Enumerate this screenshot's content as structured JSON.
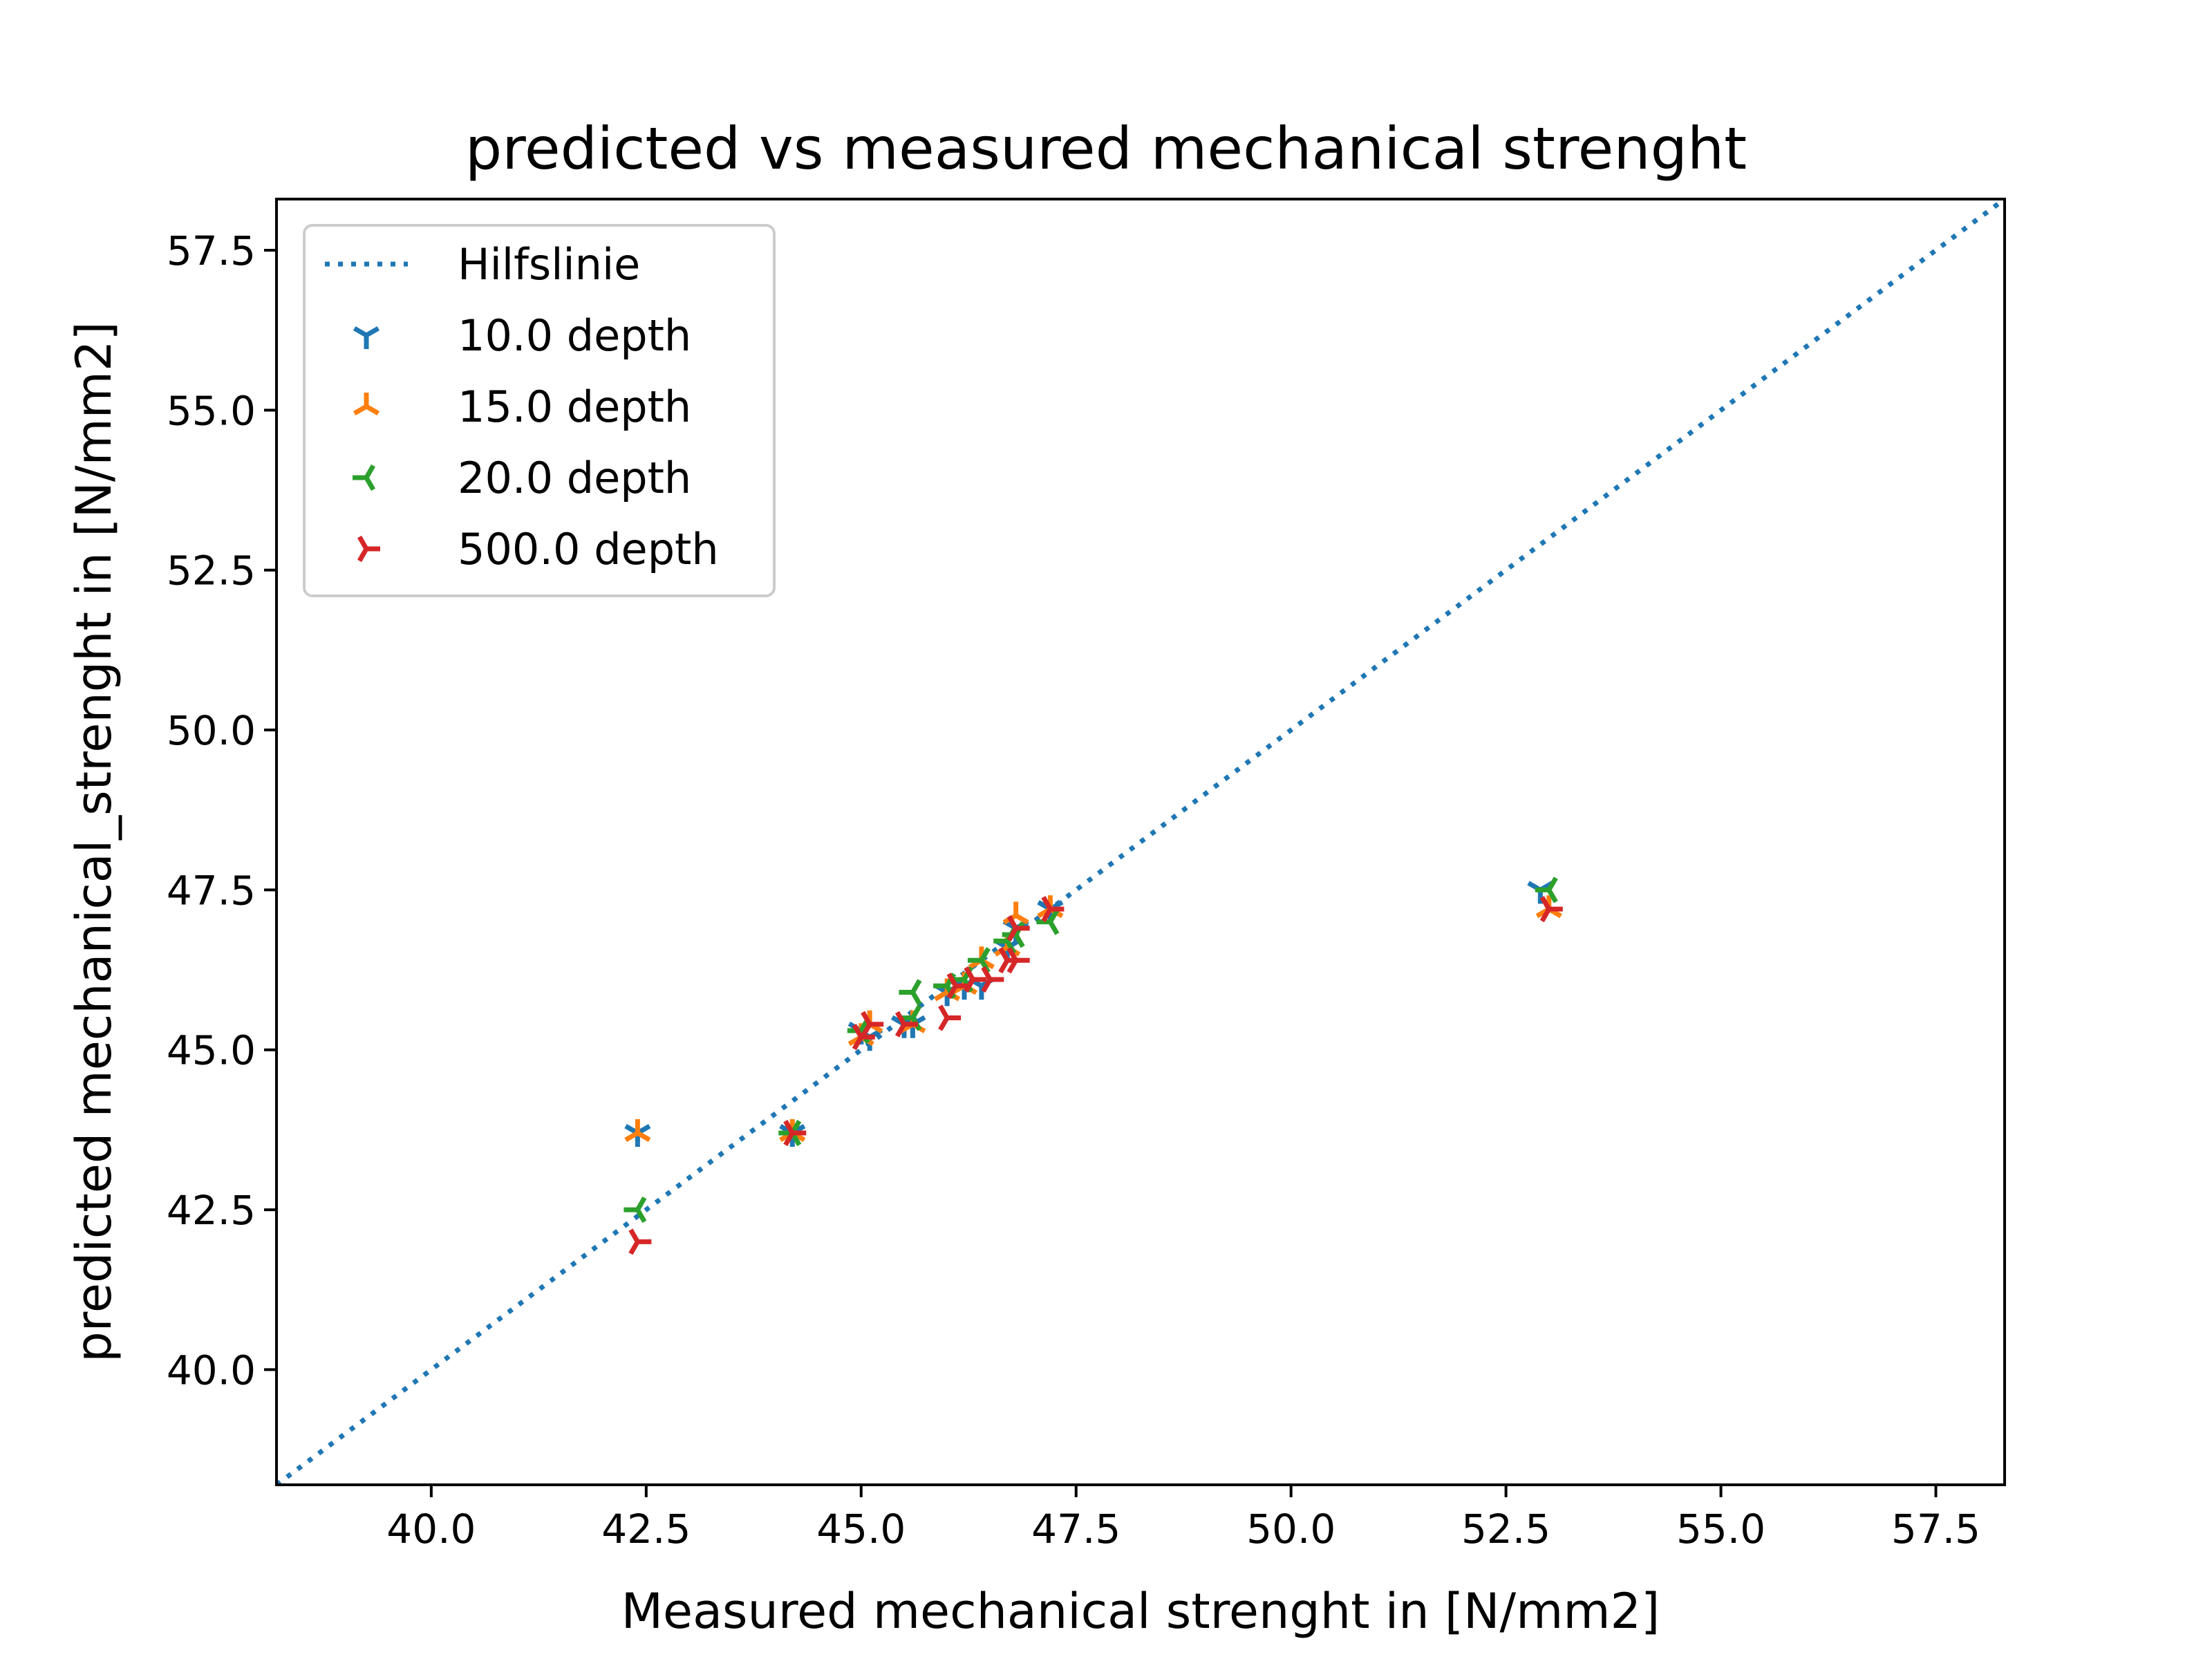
{
  "chart_data": {
    "type": "scatter",
    "title": "predicted vs measured mechanical strenght",
    "xlabel": "Measured mechanical strenght in [N/mm2]",
    "ylabel": "predicted mechanical_strenght in [N/mm2]",
    "xlim": [
      38.2,
      58.3
    ],
    "ylim": [
      38.2,
      58.3
    ],
    "xticks": [
      "40.0",
      "42.5",
      "45.0",
      "47.5",
      "50.0",
      "52.5",
      "55.0",
      "57.5"
    ],
    "yticks": [
      "40.0",
      "42.5",
      "45.0",
      "47.5",
      "50.0",
      "52.5",
      "55.0",
      "57.5"
    ],
    "grid": false,
    "legend_position": "upper-left",
    "reference_line": {
      "name": "Hilfslinie",
      "style": "dotted",
      "color": "#1f77b4",
      "x": [
        38.2,
        58.3
      ],
      "y": [
        38.2,
        58.3
      ]
    },
    "series": [
      {
        "name": "10.0 depth",
        "color": "#1f77b4",
        "marker": "tri_down",
        "points": [
          [
            42.4,
            43.7
          ],
          [
            44.2,
            43.7
          ],
          [
            45.0,
            45.3
          ],
          [
            45.1,
            45.2
          ],
          [
            45.5,
            45.4
          ],
          [
            45.6,
            45.4
          ],
          [
            46.0,
            45.9
          ],
          [
            46.2,
            46.0
          ],
          [
            46.4,
            46.0
          ],
          [
            46.7,
            46.6
          ],
          [
            46.8,
            46.9
          ],
          [
            47.2,
            47.2
          ],
          [
            52.9,
            47.5
          ]
        ]
      },
      {
        "name": "15.0 depth",
        "color": "#ff7f0e",
        "marker": "tri_up",
        "points": [
          [
            42.4,
            43.7
          ],
          [
            44.2,
            43.7
          ],
          [
            45.0,
            45.2
          ],
          [
            45.1,
            45.4
          ],
          [
            45.6,
            45.4
          ],
          [
            46.0,
            45.9
          ],
          [
            46.2,
            46.0
          ],
          [
            46.4,
            46.4
          ],
          [
            46.7,
            46.6
          ],
          [
            46.8,
            47.1
          ],
          [
            47.2,
            47.2
          ],
          [
            53.0,
            47.2
          ]
        ]
      },
      {
        "name": "20.0 depth",
        "color": "#2ca02c",
        "marker": "tri_left",
        "points": [
          [
            42.4,
            42.5
          ],
          [
            44.2,
            43.7
          ],
          [
            45.0,
            45.3
          ],
          [
            45.6,
            45.9
          ],
          [
            45.6,
            45.5
          ],
          [
            46.0,
            46.0
          ],
          [
            46.2,
            46.1
          ],
          [
            46.4,
            46.4
          ],
          [
            46.7,
            46.7
          ],
          [
            46.8,
            46.8
          ],
          [
            47.2,
            47.0
          ],
          [
            53.0,
            47.5
          ]
        ]
      },
      {
        "name": "500.0 depth",
        "color": "#d62728",
        "marker": "tri_right",
        "points": [
          [
            42.4,
            42.0
          ],
          [
            44.2,
            43.7
          ],
          [
            45.0,
            45.2
          ],
          [
            45.1,
            45.4
          ],
          [
            45.5,
            45.4
          ],
          [
            46.0,
            45.5
          ],
          [
            46.1,
            46.0
          ],
          [
            46.3,
            46.1
          ],
          [
            46.5,
            46.1
          ],
          [
            46.7,
            46.4
          ],
          [
            46.8,
            46.4
          ],
          [
            46.8,
            46.9
          ],
          [
            47.2,
            47.2
          ],
          [
            53.0,
            47.2
          ]
        ]
      }
    ]
  }
}
